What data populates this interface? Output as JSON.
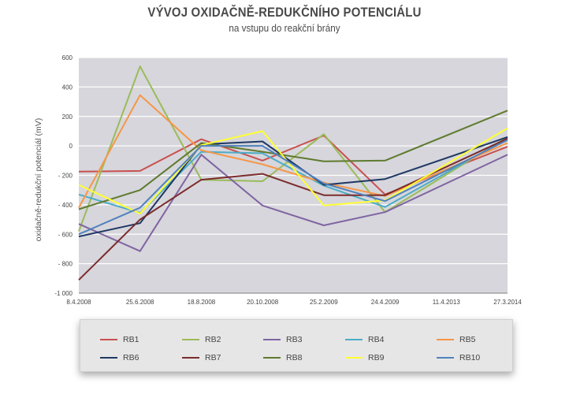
{
  "chart_data": {
    "type": "line",
    "title": "VÝVOJ OXIDAČNĚ-REDUKČNÍHO POTENCIÁLU",
    "subtitle": "na vstupu do reakční brány",
    "ylabel": "oxidačně-redukční potenciál (mV)",
    "xlabel": "",
    "ylim": [
      -1000,
      600
    ],
    "yticks": [
      600,
      400,
      200,
      0,
      -200,
      -400,
      -600,
      -800,
      -1000
    ],
    "ytick_labels": [
      "600",
      "400",
      "200",
      "0",
      "- 200",
      "- 400",
      "- 600",
      "- 800",
      "-1 000"
    ],
    "xtick_labels": [
      "8.4.2008",
      "25.6.2008",
      "18.8.2008",
      "20.10.2008",
      "25.2.2009",
      "24.4.2009",
      "11.4.2013",
      "27.3.2014"
    ],
    "grid": true,
    "legend_position": "bottom",
    "series": [
      {
        "name": "RB1",
        "color": "#c9504f",
        "points": [
          [
            0,
            -175
          ],
          [
            1,
            -170
          ],
          [
            2,
            45
          ],
          [
            3,
            -100
          ],
          [
            4,
            70
          ],
          [
            5,
            -330
          ],
          [
            7,
            -5
          ]
        ]
      },
      {
        "name": "RB2",
        "color": "#9bbb59",
        "points": [
          [
            0,
            -580
          ],
          [
            1,
            540
          ],
          [
            2,
            -230
          ],
          [
            3,
            -240
          ],
          [
            4,
            80
          ],
          [
            5,
            -450
          ],
          [
            7,
            60
          ]
        ]
      },
      {
        "name": "RB3",
        "color": "#8064a2",
        "points": [
          [
            0,
            -530
          ],
          [
            1,
            -715
          ],
          [
            2,
            -60
          ],
          [
            3,
            -405
          ],
          [
            4,
            -540
          ],
          [
            5,
            -450
          ],
          [
            7,
            -60
          ]
        ]
      },
      {
        "name": "RB4",
        "color": "#4bacc6",
        "points": [
          [
            0,
            -330
          ],
          [
            1,
            -455
          ],
          [
            2,
            -40
          ],
          [
            3,
            -50
          ],
          [
            4,
            -270
          ],
          [
            5,
            -415
          ],
          [
            7,
            50
          ]
        ]
      },
      {
        "name": "RB5",
        "color": "#f79646",
        "points": [
          [
            0,
            -420
          ],
          [
            1,
            345
          ],
          [
            2,
            -30
          ],
          [
            3,
            -125
          ],
          [
            4,
            -250
          ],
          [
            5,
            -340
          ],
          [
            7,
            20
          ]
        ]
      },
      {
        "name": "RB6",
        "color": "#1f3864",
        "points": [
          [
            0,
            -615
          ],
          [
            1,
            -525
          ],
          [
            2,
            10
          ],
          [
            3,
            30
          ],
          [
            4,
            -265
          ],
          [
            5,
            -225
          ],
          [
            7,
            60
          ]
        ]
      },
      {
        "name": "RB7",
        "color": "#7b2c2c",
        "points": [
          [
            0,
            -910
          ],
          [
            1,
            -500
          ],
          [
            2,
            -230
          ],
          [
            3,
            -190
          ],
          [
            4,
            -335
          ],
          [
            5,
            -335
          ],
          [
            7,
            50
          ]
        ]
      },
      {
        "name": "RB8",
        "color": "#5f7a2e",
        "points": [
          [
            0,
            -430
          ],
          [
            1,
            -300
          ],
          [
            2,
            20
          ],
          [
            3,
            -40
          ],
          [
            4,
            -105
          ],
          [
            5,
            -100
          ],
          [
            7,
            240
          ]
        ]
      },
      {
        "name": "RB9",
        "color": "#ffff33",
        "points": [
          [
            0,
            -265
          ],
          [
            1,
            -460
          ],
          [
            2,
            5
          ],
          [
            3,
            100
          ],
          [
            4,
            -405
          ],
          [
            5,
            -370
          ],
          [
            7,
            120
          ]
        ]
      },
      {
        "name": "RB10",
        "color": "#4f81bd",
        "points": [
          [
            0,
            -600
          ],
          [
            1,
            -420
          ],
          [
            2,
            0
          ],
          [
            3,
            0
          ],
          [
            4,
            -255
          ],
          [
            5,
            -375
          ],
          [
            7,
            40
          ]
        ]
      }
    ]
  }
}
